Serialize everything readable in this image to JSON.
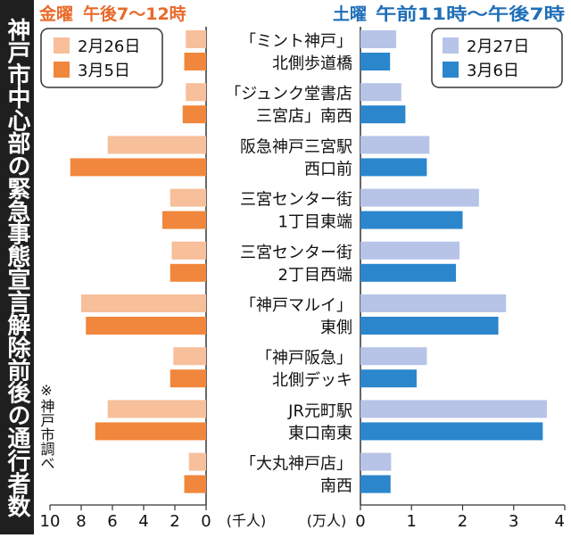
{
  "colors": {
    "friday_before": "#f7bf9a",
    "friday_after": "#f0873c",
    "friday_title": "#e8692a",
    "saturday_before": "#b7c4e8",
    "saturday_after": "#2b86cc",
    "saturday_title": "#1f6fb8",
    "title_bg": "#1f1f1f",
    "title_fg": "#ffffff"
  },
  "chart_data": {
    "type": "bar",
    "orientation": "horizontal-butterfly",
    "title": "神戸市中心部の緊急事態宣言解除前後の通行者数",
    "source_note": "※神戸市調べ",
    "categories": [
      [
        "「ミント神戸」",
        "北側歩道橋"
      ],
      [
        "「ジュンク堂書店",
        "三宮店」南西"
      ],
      [
        "阪急神戸三宮駅",
        "西口前"
      ],
      [
        "三宮センター街",
        "1丁目東端"
      ],
      [
        "三宮センター街",
        "2丁目西端"
      ],
      [
        "「神戸マルイ」",
        "東側"
      ],
      [
        "「神戸阪急」",
        "北側デッキ"
      ],
      [
        "JR元町駅",
        "東口南東"
      ],
      [
        "「大丸神戸店」",
        "南西"
      ]
    ],
    "left": {
      "title": "金曜",
      "time": "午後7～12時",
      "unit": "(千人)",
      "xlim": [
        0,
        10
      ],
      "ticks": [
        "10",
        "8",
        "6",
        "4",
        "2",
        "0"
      ],
      "series": [
        {
          "name": "2月26日",
          "values": [
            1.3,
            1.3,
            6.3,
            2.3,
            2.2,
            8.0,
            2.1,
            6.3,
            1.1
          ]
        },
        {
          "name": "3月5日",
          "values": [
            1.4,
            1.5,
            8.7,
            2.8,
            2.3,
            7.7,
            2.3,
            7.1,
            1.4
          ]
        }
      ]
    },
    "right": {
      "title": "土曜",
      "time": "午前11時～午後7時",
      "unit": "(万人)",
      "xlim": [
        0,
        4
      ],
      "ticks": [
        "0",
        "1",
        "2",
        "3",
        "4"
      ],
      "series": [
        {
          "name": "2月27日",
          "values": [
            0.7,
            0.8,
            1.35,
            2.32,
            1.94,
            2.85,
            1.3,
            3.65,
            0.6
          ]
        },
        {
          "name": "3月6日",
          "values": [
            0.58,
            0.88,
            1.3,
            2.0,
            1.87,
            2.7,
            1.1,
            3.57,
            0.59
          ]
        }
      ]
    }
  }
}
